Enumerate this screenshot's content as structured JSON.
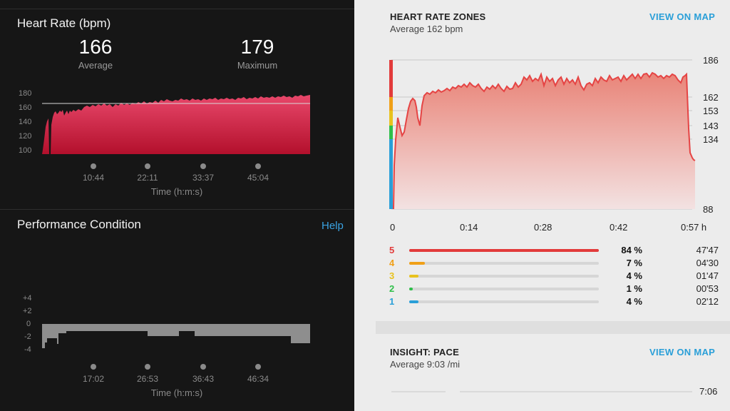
{
  "heart_rate": {
    "title": "Heart Rate (bpm)",
    "average_value": "166",
    "average_label": "Average",
    "maximum_value": "179",
    "maximum_label": "Maximum",
    "y_ticks": [
      "180",
      "160",
      "140",
      "120",
      "100"
    ],
    "x_ticks": [
      "10:44",
      "22:11",
      "33:37",
      "45:04"
    ],
    "x_axis_title": "Time (h:m:s)"
  },
  "performance": {
    "title": "Performance Condition",
    "help_label": "Help",
    "y_ticks": [
      "+4",
      "+2",
      "0",
      "-2",
      "-4"
    ],
    "x_ticks": [
      "17:02",
      "26:53",
      "36:43",
      "46:34"
    ],
    "x_axis_title": "Time (h:m:s)"
  },
  "zones": {
    "title": "HEART RATE ZONES",
    "subtitle": "Average 162 bpm",
    "map_link": "VIEW ON MAP",
    "y_ticks": [
      "186",
      "162",
      "153",
      "143",
      "134",
      "88"
    ],
    "x_ticks": [
      "0",
      "0:14",
      "0:28",
      "0:42",
      "0:57 h"
    ],
    "rows": [
      {
        "zone": "5",
        "pct": "84 %",
        "time": "47'47",
        "fraction": 0.84,
        "color": "#e23b3b"
      },
      {
        "zone": "4",
        "pct": "7 %",
        "time": "04'30",
        "fraction": 0.07,
        "color": "#f0a018"
      },
      {
        "zone": "3",
        "pct": "4 %",
        "time": "01'47",
        "fraction": 0.04,
        "color": "#e8c21e"
      },
      {
        "zone": "2",
        "pct": "1 %",
        "time": "00'53",
        "fraction": 0.01,
        "color": "#2fbf4a"
      },
      {
        "zone": "1",
        "pct": "4 %",
        "time": "02'12",
        "fraction": 0.04,
        "color": "#2a9fd8"
      }
    ]
  },
  "insight": {
    "title": "INSIGHT: PACE",
    "subtitle": "Average 9:03 /mi",
    "map_link": "VIEW ON MAP",
    "y_tick": "7:06"
  }
}
